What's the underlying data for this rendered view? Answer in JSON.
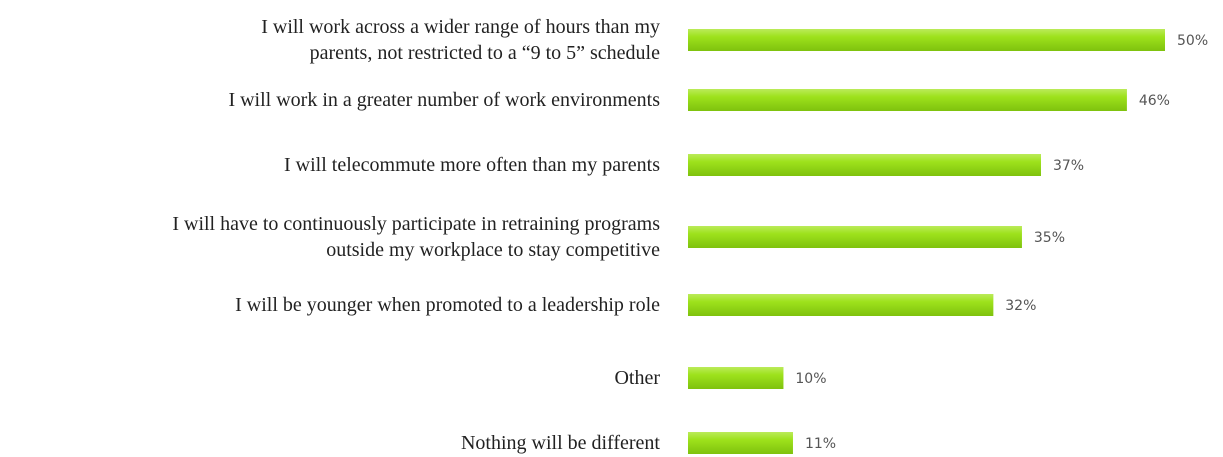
{
  "chart_data": {
    "type": "bar",
    "orientation": "horizontal",
    "categories": [
      "I will work across a wider range of hours than my\nparents, not restricted to a “9 to 5” schedule",
      "I will work in a greater number of work environments",
      "I will telecommute more often than my parents",
      "I will have to continuously participate in retraining programs\noutside my workplace to stay competitive",
      "I will be younger when promoted to a leadership role",
      "Other",
      "Nothing will be different"
    ],
    "values": [
      50,
      46,
      37,
      35,
      32,
      10,
      11
    ],
    "value_labels": [
      "50%",
      "46%",
      "37%",
      "35%",
      "32%",
      "10%",
      "11%"
    ],
    "color": "#95dc12"
  }
}
